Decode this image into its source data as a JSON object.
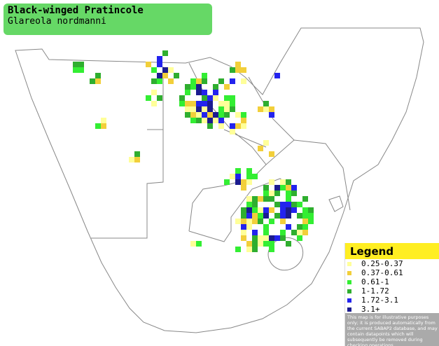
{
  "header": {
    "title": "Black-winged Pratincole",
    "subtitle": "Glareola nordmanni"
  },
  "legend": {
    "title": "Legend",
    "items": [
      {
        "label": "0.25-0.37",
        "color": "#ffff99"
      },
      {
        "label": "0.37-0.61",
        "color": "#f2cf3a"
      },
      {
        "label": "0.61-1",
        "color": "#33ee33"
      },
      {
        "label": "1-1.72",
        "color": "#2fae2f"
      },
      {
        "label": "1.72-3.1",
        "color": "#2323ee"
      },
      {
        "label": "3.1+",
        "color": "#1b1b8f"
      }
    ],
    "disclaimer": "This map is for illustrative purposes only; it is produced automatically from the current SABAP2 database, and may contain datapoints which will subsequently be removed during checking operations."
  }
}
